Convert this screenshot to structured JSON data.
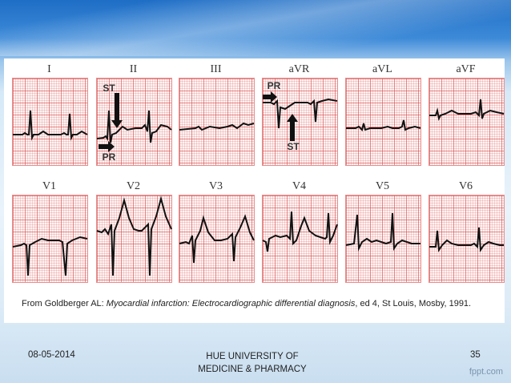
{
  "footer": {
    "date": "08-05-2014",
    "university_line1": "HUE UNIVERSITY OF",
    "university_line2": "MEDICINE & PHARMACY",
    "page_number": "35",
    "brand": "fppt.com"
  },
  "figure": {
    "row1_leads": [
      "I",
      "II",
      "III",
      "aVR",
      "aVL",
      "aVF"
    ],
    "row2_leads": [
      "V1",
      "V2",
      "V3",
      "V4",
      "V5",
      "V6"
    ],
    "annotations": {
      "lead_ii_top": "ST",
      "lead_ii_bottom": "PR",
      "lead_avr_top": "PR",
      "lead_avr_bottom": "ST"
    },
    "citation_prefix": "From Goldberger AL: ",
    "citation_title": "Myocardial infarction: Electrocardiographic differential diagnosis",
    "citation_suffix": ", ed 4, St Louis, Mosby, 1991."
  },
  "colors": {
    "grid": "#d64e4e",
    "trace": "#111111"
  }
}
